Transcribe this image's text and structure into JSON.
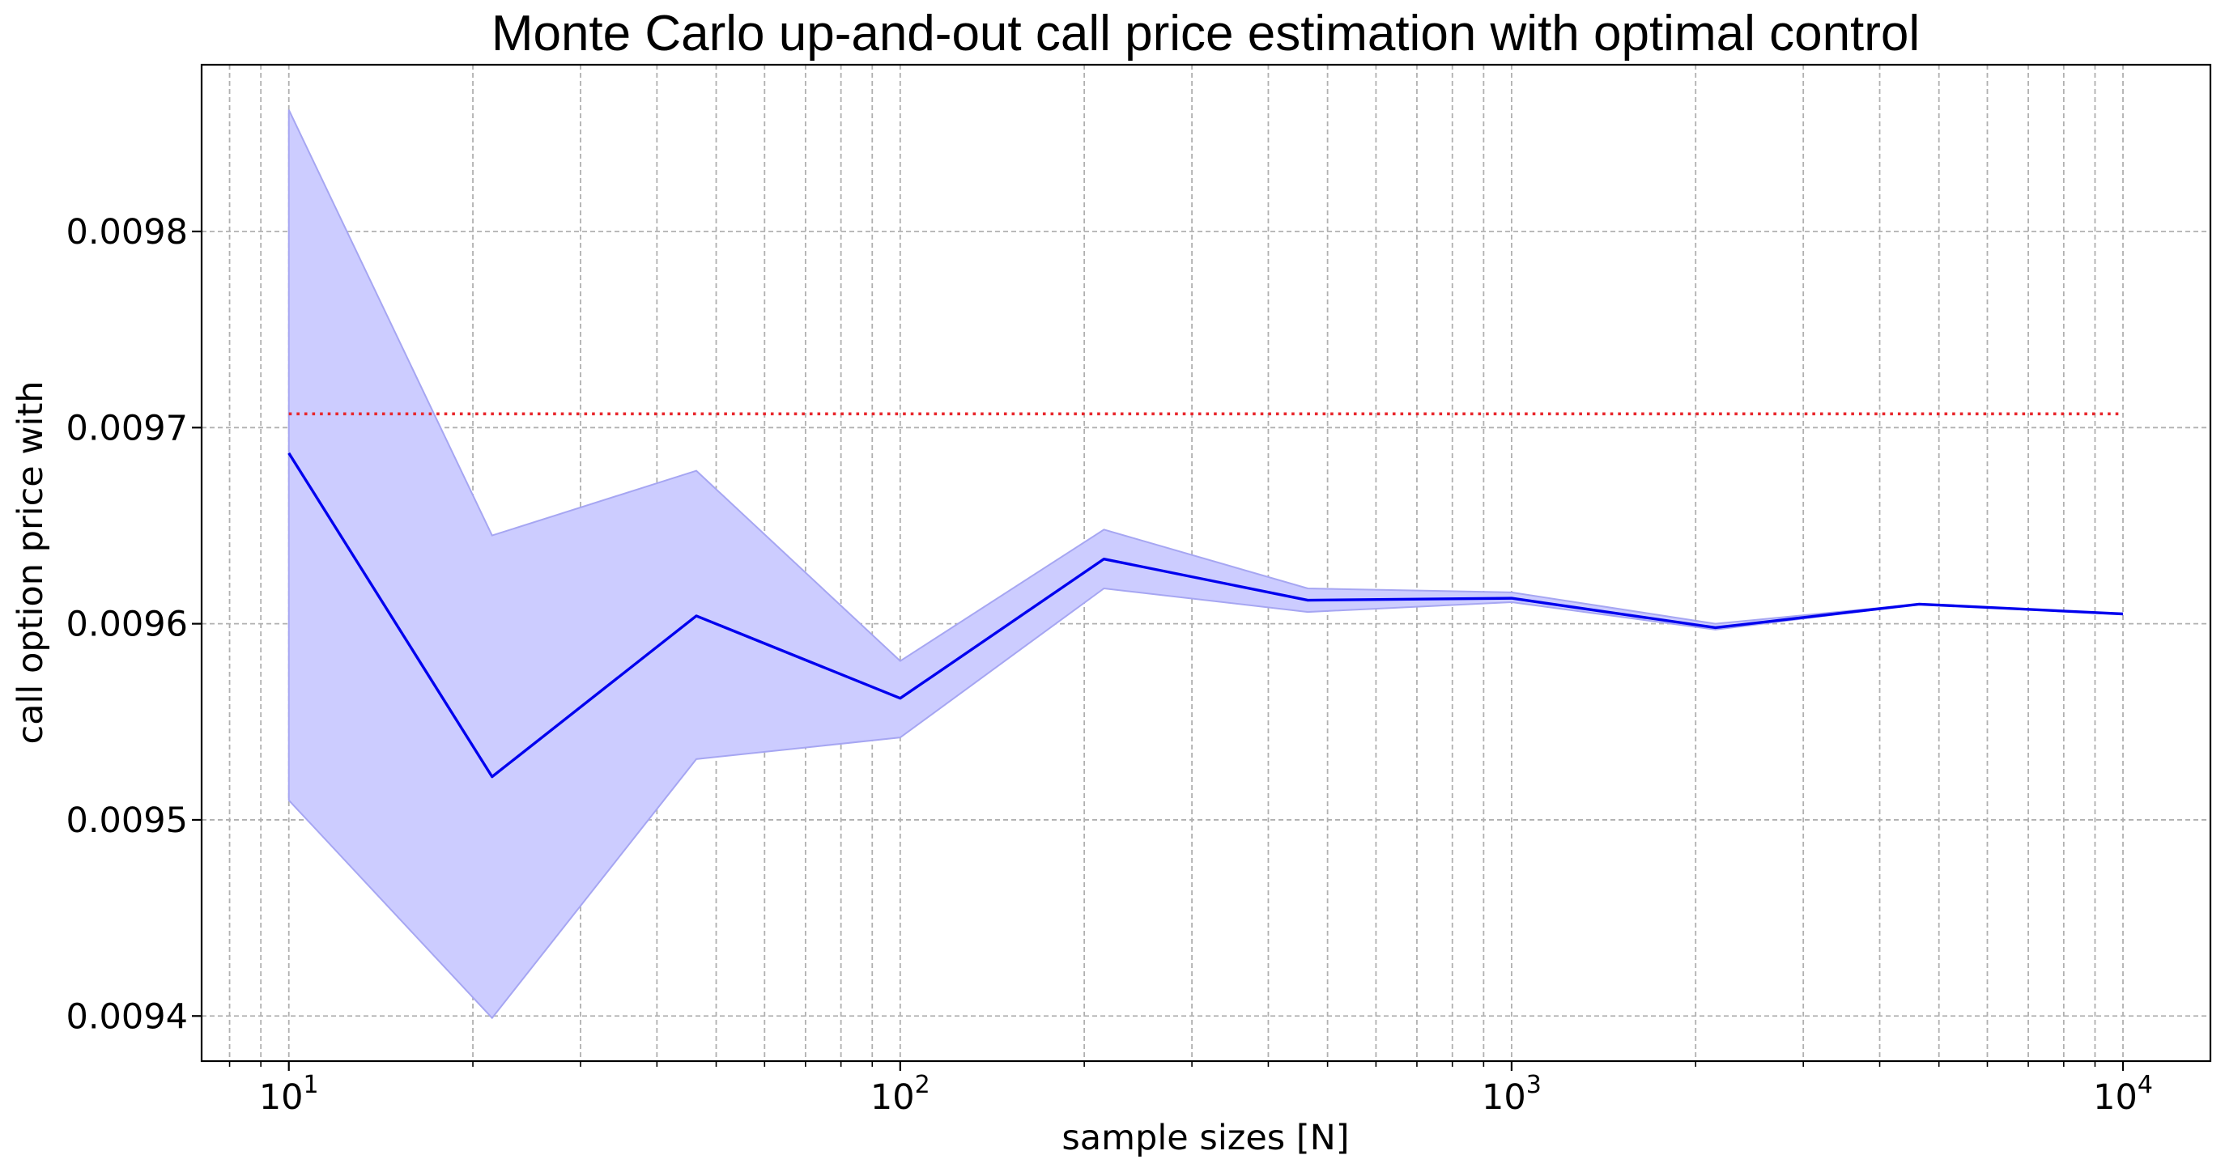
{
  "chart_data": {
    "type": "line",
    "title": "Monte Carlo up-and-out call price estimation with optimal control",
    "xlabel": "sample sizes [N]",
    "ylabel": "call option price with",
    "x_scale": "log",
    "xlim": [
      7.2,
      13900
    ],
    "ylim": [
      0.009377,
      0.009885
    ],
    "grid": true,
    "x_ticks": [
      {
        "base": "10",
        "exp": "1",
        "value": 10
      },
      {
        "base": "10",
        "exp": "2",
        "value": 100
      },
      {
        "base": "10",
        "exp": "3",
        "value": 1000
      },
      {
        "base": "10",
        "exp": "4",
        "value": 10000
      }
    ],
    "y_ticks": [
      {
        "label": "0.0094",
        "value": 0.0094
      },
      {
        "label": "0.0095",
        "value": 0.0095
      },
      {
        "label": "0.0096",
        "value": 0.0096
      },
      {
        "label": "0.0097",
        "value": 0.0097
      },
      {
        "label": "0.0098",
        "value": 0.0098
      }
    ],
    "x": [
      10,
      21.5,
      46.4,
      100,
      215.4,
      464.2,
      1000,
      2154.4,
      4641.6,
      10000
    ],
    "series": [
      {
        "type": "line",
        "color": "#0000ee",
        "values": [
          0.009687,
          0.009522,
          0.009604,
          0.009562,
          0.009633,
          0.009612,
          0.009613,
          0.009598,
          0.00961,
          0.009605
        ]
      },
      {
        "type": "band",
        "color": "#ccccff",
        "edge_color": "#a6a6f2",
        "lower": [
          0.00951,
          0.009399,
          0.009531,
          0.009542,
          0.009618,
          0.009606,
          0.009611,
          0.009597,
          0.00961,
          0.009605
        ],
        "upper": [
          0.009862,
          0.009645,
          0.009678,
          0.009581,
          0.009648,
          0.009618,
          0.009616,
          0.0096,
          0.00961,
          0.009605
        ]
      },
      {
        "type": "reference",
        "color": "#e8262b",
        "style": "dotted",
        "x_range": [
          10,
          10000
        ],
        "value": 0.009707
      }
    ]
  }
}
